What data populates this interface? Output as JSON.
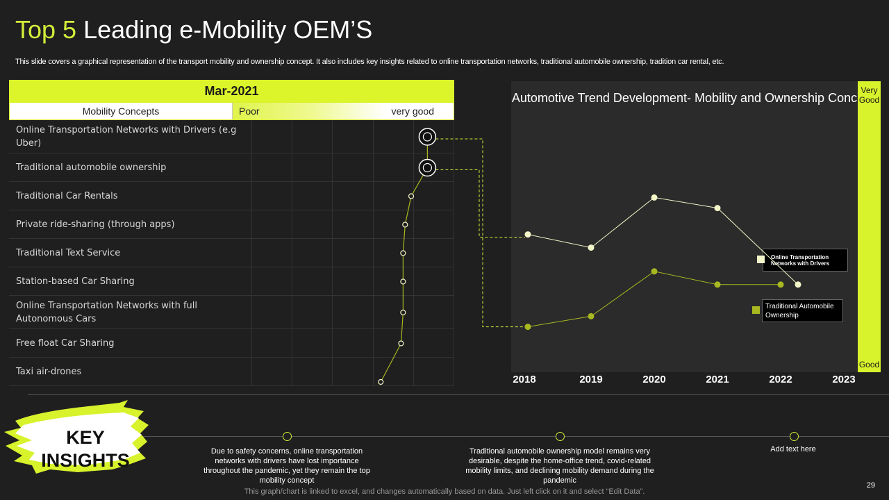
{
  "header": {
    "title_accent": "Top 5",
    "title_rest": "Leading e-Mobility OEM’S",
    "subtitle": "This slide covers a graphical representation of the transport mobility and ownership concept. It also includes key insights related to online transportation networks, traditional automobile ownership, tradition car rental, etc."
  },
  "table": {
    "header": "Mar-2021",
    "col1_label": "Mobility  Concepts",
    "scale_low": "Poor",
    "scale_high": "very good",
    "rows": [
      "Online Transportation Networks with Drivers (e.g Uber)",
      "Traditional automobile ownership",
      "Traditional Car Rentals",
      "Private ride-sharing (through apps)",
      "Traditional Text Service",
      "Station-based Car Sharing",
      "Online Transportation Networks with full Autonomous Cars",
      "Free float Car Sharing",
      "Taxi air-drones"
    ]
  },
  "colors": {
    "accent": "#d4ed3a",
    "olive": "#a8b820",
    "series_light": "#f3f6c8",
    "background": "#1f1f1f"
  },
  "chart_data": [
    {
      "type": "line",
      "title": "Mar-2021",
      "xlabel": "",
      "ylabel": "",
      "scale": [
        "Poor",
        "very good"
      ],
      "xlim": [
        0,
        1
      ],
      "categories": [
        "Online Transportation Networks with Drivers (e.g Uber)",
        "Traditional automobile ownership",
        "Traditional Car Rentals",
        "Private ride-sharing (through apps)",
        "Traditional Text Service",
        "Station-based Car Sharing",
        "Online Transportation Networks with full Autonomous Cars",
        "Free float Car Sharing",
        "Taxi air-drones"
      ],
      "values": [
        0.95,
        0.95,
        0.87,
        0.84,
        0.83,
        0.83,
        0.83,
        0.82,
        0.72
      ],
      "highlighted": [
        0,
        1
      ]
    },
    {
      "type": "line",
      "title": "Automotive Trend Development- Mobility and Ownership Concept",
      "x": [
        2018,
        2019,
        2020,
        2021,
        2022,
        2023
      ],
      "y_scale": [
        "Good",
        "Very Good"
      ],
      "ylim": [
        0,
        10
      ],
      "series": [
        {
          "name": "Online Transportation Networks with Drivers",
          "color": "#f3f6c8",
          "x": [
            2018,
            2019,
            2020,
            2021,
            2022
          ],
          "values": [
            4.8,
            4.3,
            6.2,
            5.8,
            2.9
          ]
        },
        {
          "name": "Traditional Automobile Ownership",
          "color": "#a8b820",
          "x": [
            2018,
            2019,
            2020,
            2021,
            2022
          ],
          "values": [
            1.3,
            1.7,
            3.4,
            2.9,
            2.9
          ]
        }
      ],
      "legend_position": "right",
      "y_top_label": "Very Good",
      "y_bottom_label": "Good"
    }
  ],
  "insights": {
    "badge": "KEY INSIGHTS",
    "items": [
      "Due to safety concerns, online transportation networks with drivers have lost importance throughout the pandemic, yet they remain the top mobility concept",
      "Traditional automobile ownership model remains very desirable, despite the home-office trend, covid-related mobility limits, and declining mobility demand during the pandemic",
      "Add text here"
    ]
  },
  "footer": {
    "note": "This graph/chart is linked to excel,  and changes automatically based on data. Just left click on it and select “Edit Data”.",
    "page": "29"
  }
}
